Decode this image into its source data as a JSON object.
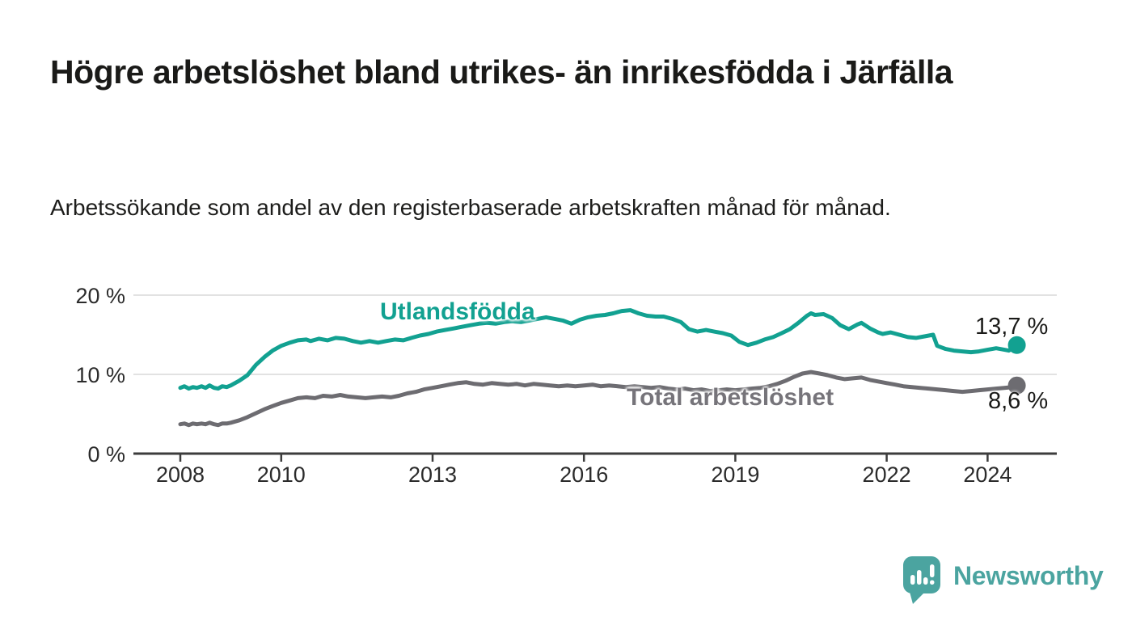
{
  "header": {
    "title": "Högre arbetslöshet bland utrikes- än inrikesfödda i Järfälla",
    "subtitle": "Arbetssökande som andel av den registerbaserade arbetskraften månad för månad."
  },
  "branding": {
    "logo_text": "Newsworthy",
    "logo_icon": "speech-bubble-bar-chart",
    "logo_color": "#4ba4a0"
  },
  "colors": {
    "foreign_born_line": "#12a191",
    "total_line": "#6d6c71",
    "gridline": "#e2e2e2",
    "axis": "#3c3c3c",
    "tick_text": "#2b2b2b",
    "title_text": "#1a1a18"
  },
  "chart_data": {
    "type": "line",
    "title": "Högre arbetslöshet bland utrikes- än inrikesfödda i Järfälla",
    "subtitle": "Arbetssökande som andel av den registerbaserade arbetskraften månad för månad.",
    "xlabel": "",
    "ylabel": "",
    "x_axis": {
      "ticks": [
        2008,
        2010,
        2013,
        2016,
        2019,
        2022,
        2024
      ],
      "tick_labels": [
        "2008",
        "2010",
        "2013",
        "2016",
        "2019",
        "2022",
        "2024"
      ],
      "range": [
        2007.1,
        2025.4
      ]
    },
    "y_axis": {
      "ticks": [
        0,
        10,
        20
      ],
      "tick_labels": [
        "0 %",
        "10 %",
        "20 %"
      ],
      "range": [
        0,
        20.5
      ],
      "grid": true
    },
    "legend_position": "inline-labels",
    "series": [
      {
        "name": "Utlandsfödda",
        "color": "#12a191",
        "end_label": "13,7 %",
        "end_value": 13.7,
        "points": [
          [
            2008.0,
            8.3
          ],
          [
            2008.08,
            8.5
          ],
          [
            2008.17,
            8.2
          ],
          [
            2008.25,
            8.4
          ],
          [
            2008.33,
            8.3
          ],
          [
            2008.42,
            8.5
          ],
          [
            2008.5,
            8.3
          ],
          [
            2008.58,
            8.6
          ],
          [
            2008.67,
            8.3
          ],
          [
            2008.75,
            8.2
          ],
          [
            2008.83,
            8.5
          ],
          [
            2008.92,
            8.4
          ],
          [
            2009.0,
            8.6
          ],
          [
            2009.17,
            9.2
          ],
          [
            2009.33,
            9.9
          ],
          [
            2009.5,
            11.2
          ],
          [
            2009.67,
            12.2
          ],
          [
            2009.83,
            13.0
          ],
          [
            2010.0,
            13.6
          ],
          [
            2010.17,
            14.0
          ],
          [
            2010.33,
            14.3
          ],
          [
            2010.5,
            14.4
          ],
          [
            2010.58,
            14.2
          ],
          [
            2010.75,
            14.5
          ],
          [
            2010.92,
            14.3
          ],
          [
            2011.08,
            14.6
          ],
          [
            2011.25,
            14.5
          ],
          [
            2011.42,
            14.2
          ],
          [
            2011.58,
            14.0
          ],
          [
            2011.75,
            14.2
          ],
          [
            2011.92,
            14.0
          ],
          [
            2012.08,
            14.2
          ],
          [
            2012.25,
            14.4
          ],
          [
            2012.42,
            14.3
          ],
          [
            2012.58,
            14.6
          ],
          [
            2012.75,
            14.9
          ],
          [
            2012.92,
            15.1
          ],
          [
            2013.08,
            15.4
          ],
          [
            2013.25,
            15.6
          ],
          [
            2013.42,
            15.8
          ],
          [
            2013.58,
            16.0
          ],
          [
            2013.75,
            16.2
          ],
          [
            2013.92,
            16.4
          ],
          [
            2014.08,
            16.5
          ],
          [
            2014.25,
            16.4
          ],
          [
            2014.42,
            16.6
          ],
          [
            2014.58,
            16.7
          ],
          [
            2014.75,
            16.6
          ],
          [
            2014.92,
            16.8
          ],
          [
            2015.08,
            17.0
          ],
          [
            2015.25,
            17.2
          ],
          [
            2015.42,
            17.0
          ],
          [
            2015.58,
            16.8
          ],
          [
            2015.75,
            16.4
          ],
          [
            2015.92,
            16.9
          ],
          [
            2016.08,
            17.2
          ],
          [
            2016.25,
            17.4
          ],
          [
            2016.42,
            17.5
          ],
          [
            2016.58,
            17.7
          ],
          [
            2016.75,
            18.0
          ],
          [
            2016.92,
            18.1
          ],
          [
            2017.08,
            17.7
          ],
          [
            2017.25,
            17.4
          ],
          [
            2017.42,
            17.3
          ],
          [
            2017.58,
            17.3
          ],
          [
            2017.75,
            17.0
          ],
          [
            2017.92,
            16.6
          ],
          [
            2018.08,
            15.7
          ],
          [
            2018.25,
            15.4
          ],
          [
            2018.42,
            15.6
          ],
          [
            2018.58,
            15.4
          ],
          [
            2018.75,
            15.2
          ],
          [
            2018.92,
            14.9
          ],
          [
            2019.08,
            14.1
          ],
          [
            2019.25,
            13.7
          ],
          [
            2019.42,
            14.0
          ],
          [
            2019.58,
            14.4
          ],
          [
            2019.75,
            14.7
          ],
          [
            2019.92,
            15.2
          ],
          [
            2020.08,
            15.7
          ],
          [
            2020.25,
            16.5
          ],
          [
            2020.42,
            17.4
          ],
          [
            2020.5,
            17.7
          ],
          [
            2020.58,
            17.5
          ],
          [
            2020.75,
            17.6
          ],
          [
            2020.92,
            17.1
          ],
          [
            2021.08,
            16.2
          ],
          [
            2021.25,
            15.7
          ],
          [
            2021.42,
            16.3
          ],
          [
            2021.5,
            16.5
          ],
          [
            2021.67,
            15.8
          ],
          [
            2021.83,
            15.3
          ],
          [
            2021.92,
            15.1
          ],
          [
            2022.08,
            15.3
          ],
          [
            2022.25,
            15.0
          ],
          [
            2022.42,
            14.7
          ],
          [
            2022.58,
            14.6
          ],
          [
            2022.75,
            14.8
          ],
          [
            2022.92,
            15.0
          ],
          [
            2023.0,
            13.6
          ],
          [
            2023.17,
            13.2
          ],
          [
            2023.33,
            13.0
          ],
          [
            2023.5,
            12.9
          ],
          [
            2023.67,
            12.8
          ],
          [
            2023.83,
            12.9
          ],
          [
            2024.0,
            13.1
          ],
          [
            2024.17,
            13.3
          ],
          [
            2024.25,
            13.2
          ],
          [
            2024.42,
            13.0
          ],
          [
            2024.5,
            13.3
          ],
          [
            2024.58,
            13.7
          ]
        ]
      },
      {
        "name": "Total arbetslöshet",
        "color": "#6d6c71",
        "end_label": "8,6 %",
        "end_value": 8.6,
        "points": [
          [
            2008.0,
            3.7
          ],
          [
            2008.08,
            3.8
          ],
          [
            2008.17,
            3.6
          ],
          [
            2008.25,
            3.8
          ],
          [
            2008.33,
            3.7
          ],
          [
            2008.42,
            3.8
          ],
          [
            2008.5,
            3.7
          ],
          [
            2008.58,
            3.9
          ],
          [
            2008.67,
            3.7
          ],
          [
            2008.75,
            3.6
          ],
          [
            2008.83,
            3.8
          ],
          [
            2008.92,
            3.8
          ],
          [
            2009.0,
            3.9
          ],
          [
            2009.17,
            4.2
          ],
          [
            2009.33,
            4.6
          ],
          [
            2009.5,
            5.1
          ],
          [
            2009.67,
            5.6
          ],
          [
            2009.83,
            6.0
          ],
          [
            2010.0,
            6.4
          ],
          [
            2010.17,
            6.7
          ],
          [
            2010.33,
            7.0
          ],
          [
            2010.5,
            7.1
          ],
          [
            2010.67,
            7.0
          ],
          [
            2010.83,
            7.3
          ],
          [
            2011.0,
            7.2
          ],
          [
            2011.17,
            7.4
          ],
          [
            2011.33,
            7.2
          ],
          [
            2011.5,
            7.1
          ],
          [
            2011.67,
            7.0
          ],
          [
            2011.83,
            7.1
          ],
          [
            2012.0,
            7.2
          ],
          [
            2012.17,
            7.1
          ],
          [
            2012.33,
            7.3
          ],
          [
            2012.5,
            7.6
          ],
          [
            2012.67,
            7.8
          ],
          [
            2012.83,
            8.1
          ],
          [
            2013.0,
            8.3
          ],
          [
            2013.17,
            8.5
          ],
          [
            2013.33,
            8.7
          ],
          [
            2013.5,
            8.9
          ],
          [
            2013.67,
            9.0
          ],
          [
            2013.83,
            8.8
          ],
          [
            2014.0,
            8.7
          ],
          [
            2014.17,
            8.9
          ],
          [
            2014.33,
            8.8
          ],
          [
            2014.5,
            8.7
          ],
          [
            2014.67,
            8.8
          ],
          [
            2014.83,
            8.6
          ],
          [
            2015.0,
            8.8
          ],
          [
            2015.17,
            8.7
          ],
          [
            2015.33,
            8.6
          ],
          [
            2015.5,
            8.5
          ],
          [
            2015.67,
            8.6
          ],
          [
            2015.83,
            8.5
          ],
          [
            2016.0,
            8.6
          ],
          [
            2016.17,
            8.7
          ],
          [
            2016.33,
            8.5
          ],
          [
            2016.5,
            8.6
          ],
          [
            2016.67,
            8.5
          ],
          [
            2016.83,
            8.4
          ],
          [
            2017.0,
            8.5
          ],
          [
            2017.17,
            8.4
          ],
          [
            2017.33,
            8.3
          ],
          [
            2017.5,
            8.4
          ],
          [
            2017.67,
            8.2
          ],
          [
            2017.83,
            8.1
          ],
          [
            2018.0,
            8.2
          ],
          [
            2018.17,
            8.0
          ],
          [
            2018.33,
            8.1
          ],
          [
            2018.5,
            7.9
          ],
          [
            2018.67,
            8.0
          ],
          [
            2018.83,
            8.1
          ],
          [
            2019.0,
            8.0
          ],
          [
            2019.17,
            8.1
          ],
          [
            2019.33,
            8.2
          ],
          [
            2019.5,
            8.3
          ],
          [
            2019.67,
            8.5
          ],
          [
            2019.83,
            8.8
          ],
          [
            2020.0,
            9.2
          ],
          [
            2020.17,
            9.7
          ],
          [
            2020.33,
            10.1
          ],
          [
            2020.5,
            10.3
          ],
          [
            2020.67,
            10.1
          ],
          [
            2020.83,
            9.9
          ],
          [
            2021.0,
            9.6
          ],
          [
            2021.17,
            9.4
          ],
          [
            2021.33,
            9.5
          ],
          [
            2021.5,
            9.6
          ],
          [
            2021.67,
            9.3
          ],
          [
            2021.83,
            9.1
          ],
          [
            2022.0,
            8.9
          ],
          [
            2022.17,
            8.7
          ],
          [
            2022.33,
            8.5
          ],
          [
            2022.5,
            8.4
          ],
          [
            2022.67,
            8.3
          ],
          [
            2022.83,
            8.2
          ],
          [
            2023.0,
            8.1
          ],
          [
            2023.17,
            8.0
          ],
          [
            2023.33,
            7.9
          ],
          [
            2023.5,
            7.8
          ],
          [
            2023.67,
            7.9
          ],
          [
            2023.83,
            8.0
          ],
          [
            2024.0,
            8.1
          ],
          [
            2024.17,
            8.2
          ],
          [
            2024.33,
            8.3
          ],
          [
            2024.5,
            8.4
          ],
          [
            2024.58,
            8.6
          ]
        ]
      }
    ]
  }
}
